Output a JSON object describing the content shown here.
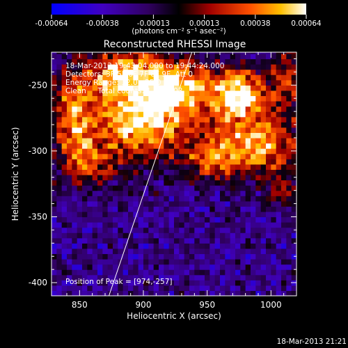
{
  "chart_data": {
    "type": "heatmap",
    "title": "Reconstructed RHESSI Image",
    "xlabel": "Heliocentric X (arcsec)",
    "ylabel": "Heliocentric Y (arcsec)",
    "xlim": [
      828,
      1020
    ],
    "ylim": [
      -410,
      -225
    ],
    "xticks": [
      "850",
      "900",
      "950",
      "1000"
    ],
    "yticks": [
      "-250",
      "-300",
      "-350",
      "-400"
    ],
    "xtick_values": [
      850,
      900,
      950,
      1000
    ],
    "ytick_values": [
      -250,
      -300,
      -350,
      -400
    ],
    "colorbar": {
      "min": -0.00064,
      "max": 0.00064,
      "tick_labels": [
        "-0.00064",
        "-0.00038",
        "-0.00013",
        "0.00013",
        "0.00038",
        "0.00064"
      ],
      "unit_label": "(photons cm⁻² s⁻¹ asec⁻²)",
      "colormap": "blue-purple-black-red-orange-yellow-white"
    },
    "annotations": [
      "18-Mar-2013 19:43:04.000 to 19:44:24.000",
      "Detectors: 3F 5F 6F 7F 8F 9F, Att 0",
      "Energy Range: 12.0 - 25.0 keV",
      "Clean     Total counts: 1.82E+03"
    ],
    "peak_label": "Position of Peak = [974,-257]",
    "peak": {
      "x": 974,
      "y": -257
    },
    "limb_line": {
      "x1": 873,
      "y1": -410,
      "x2": 938,
      "y2": -225
    },
    "emission_regions": [
      {
        "x": 900,
        "y": -275,
        "sx": 28,
        "sy": 22,
        "amp": 1.0
      },
      {
        "x": 885,
        "y": -240,
        "sx": 22,
        "sy": 14,
        "amp": 0.75
      },
      {
        "x": 930,
        "y": -250,
        "sx": 18,
        "sy": 14,
        "amp": 0.65
      },
      {
        "x": 974,
        "y": -257,
        "sx": 16,
        "sy": 14,
        "amp": 1.05
      },
      {
        "x": 990,
        "y": -295,
        "sx": 22,
        "sy": 16,
        "amp": 0.85
      },
      {
        "x": 955,
        "y": -305,
        "sx": 15,
        "sy": 12,
        "amp": 0.55
      },
      {
        "x": 845,
        "y": -275,
        "sx": 12,
        "sy": 25,
        "amp": 0.7
      },
      {
        "x": 860,
        "y": -310,
        "sx": 14,
        "sy": 12,
        "amp": 0.45
      },
      {
        "x": 1015,
        "y": -245,
        "sx": 10,
        "sy": 18,
        "amp": 0.5
      },
      {
        "x": 1010,
        "y": -330,
        "sx": 10,
        "sy": 10,
        "amp": 0.35
      }
    ]
  },
  "footer": {
    "timestamp": "18-Mar-2013 21:21"
  }
}
